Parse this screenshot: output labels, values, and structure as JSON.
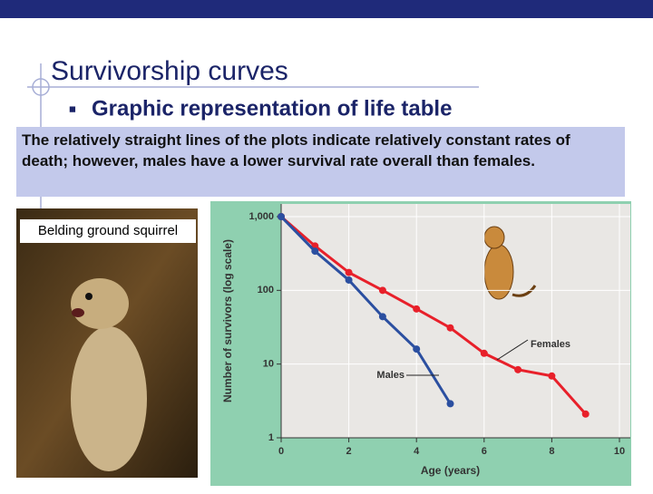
{
  "header": {
    "title": "Survivorship curves",
    "bullet": "Graphic representation of life table"
  },
  "note": "The relatively straight lines of the plots indicate relatively constant rates of death; however, males have a lower survival rate overall than females.",
  "photo": {
    "caption": "Belding ground squirrel"
  },
  "chart_data": {
    "type": "line",
    "x_label": "Age (years)",
    "y_label": "Number of survivors (log scale)",
    "log_scale": true,
    "xlim": [
      0,
      10
    ],
    "xticks": [
      0,
      2,
      4,
      6,
      8,
      10
    ],
    "ylim": [
      1,
      1000
    ],
    "yticks": [
      1,
      10,
      100,
      {
        "value": 1000,
        "label": "1,000"
      }
    ],
    "grid": true,
    "series": [
      {
        "name": "Females",
        "color": "#e8202a",
        "x": [
          0,
          1,
          2,
          3,
          4,
          5,
          6,
          7,
          8,
          9
        ],
        "values": [
          1000,
          400,
          175,
          100,
          56,
          31,
          14,
          8.4,
          6.9,
          2.1
        ]
      },
      {
        "name": "Males",
        "color": "#2b4fa0",
        "x": [
          0,
          1,
          2,
          3,
          4,
          5
        ],
        "values": [
          1000,
          340,
          138,
          44,
          16,
          2.9
        ]
      }
    ]
  }
}
